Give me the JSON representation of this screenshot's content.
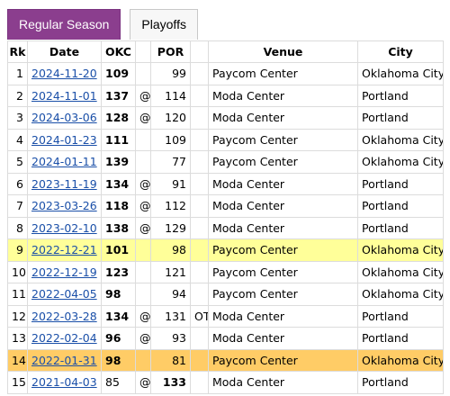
{
  "tabs": [
    {
      "label": "Regular Season",
      "active": true
    },
    {
      "label": "Playoffs",
      "active": false
    }
  ],
  "columns": {
    "rk": "Rk",
    "date": "Date",
    "team1": "OKC",
    "at": "",
    "team2": "POR",
    "ot": "",
    "venue": "Venue",
    "city": "City"
  },
  "rows": [
    {
      "rk": "1",
      "date": "2024-11-20",
      "s1": "109",
      "at": "",
      "s2": "99",
      "ot": "",
      "venue": "Paycom Center",
      "city": "Oklahoma City",
      "winner": "1",
      "highlight": ""
    },
    {
      "rk": "2",
      "date": "2024-11-01",
      "s1": "137",
      "at": "@",
      "s2": "114",
      "ot": "",
      "venue": "Moda Center",
      "city": "Portland",
      "winner": "1",
      "highlight": ""
    },
    {
      "rk": "3",
      "date": "2024-03-06",
      "s1": "128",
      "at": "@",
      "s2": "120",
      "ot": "",
      "venue": "Moda Center",
      "city": "Portland",
      "winner": "1",
      "highlight": ""
    },
    {
      "rk": "4",
      "date": "2024-01-23",
      "s1": "111",
      "at": "",
      "s2": "109",
      "ot": "",
      "venue": "Paycom Center",
      "city": "Oklahoma City",
      "winner": "1",
      "highlight": ""
    },
    {
      "rk": "5",
      "date": "2024-01-11",
      "s1": "139",
      "at": "",
      "s2": "77",
      "ot": "",
      "venue": "Paycom Center",
      "city": "Oklahoma City",
      "winner": "1",
      "highlight": ""
    },
    {
      "rk": "6",
      "date": "2023-11-19",
      "s1": "134",
      "at": "@",
      "s2": "91",
      "ot": "",
      "venue": "Moda Center",
      "city": "Portland",
      "winner": "1",
      "highlight": ""
    },
    {
      "rk": "7",
      "date": "2023-03-26",
      "s1": "118",
      "at": "@",
      "s2": "112",
      "ot": "",
      "venue": "Moda Center",
      "city": "Portland",
      "winner": "1",
      "highlight": ""
    },
    {
      "rk": "8",
      "date": "2023-02-10",
      "s1": "138",
      "at": "@",
      "s2": "129",
      "ot": "",
      "venue": "Moda Center",
      "city": "Portland",
      "winner": "1",
      "highlight": ""
    },
    {
      "rk": "9",
      "date": "2022-12-21",
      "s1": "101",
      "at": "",
      "s2": "98",
      "ot": "",
      "venue": "Paycom Center",
      "city": "Oklahoma City",
      "winner": "1",
      "highlight": "yellow"
    },
    {
      "rk": "10",
      "date": "2022-12-19",
      "s1": "123",
      "at": "",
      "s2": "121",
      "ot": "",
      "venue": "Paycom Center",
      "city": "Oklahoma City",
      "winner": "1",
      "highlight": ""
    },
    {
      "rk": "11",
      "date": "2022-04-05",
      "s1": "98",
      "at": "",
      "s2": "94",
      "ot": "",
      "venue": "Paycom Center",
      "city": "Oklahoma City",
      "winner": "1",
      "highlight": ""
    },
    {
      "rk": "12",
      "date": "2022-03-28",
      "s1": "134",
      "at": "@",
      "s2": "131",
      "ot": "OT",
      "venue": "Moda Center",
      "city": "Portland",
      "winner": "1",
      "highlight": ""
    },
    {
      "rk": "13",
      "date": "2022-02-04",
      "s1": "96",
      "at": "@",
      "s2": "93",
      "ot": "",
      "venue": "Moda Center",
      "city": "Portland",
      "winner": "1",
      "highlight": ""
    },
    {
      "rk": "14",
      "date": "2022-01-31",
      "s1": "98",
      "at": "",
      "s2": "81",
      "ot": "",
      "venue": "Paycom Center",
      "city": "Oklahoma City",
      "winner": "1",
      "highlight": "orange"
    },
    {
      "rk": "15",
      "date": "2021-04-03",
      "s1": "85",
      "at": "@",
      "s2": "133",
      "ot": "",
      "venue": "Moda Center",
      "city": "Portland",
      "winner": "2",
      "highlight": ""
    }
  ],
  "colors": {
    "tab_active_bg": "#8b3e8e",
    "link": "#1a4fa8",
    "highlight_yellow": "#ffff99",
    "highlight_orange": "#ffcc66"
  }
}
